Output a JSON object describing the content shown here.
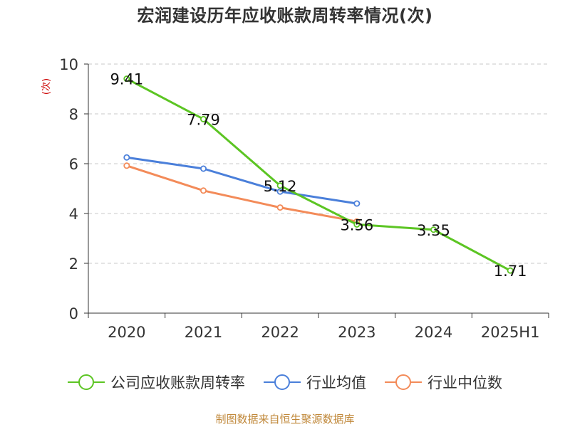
{
  "title": "宏润建设历年应收账款周转率情况(次)",
  "source": "制图数据来自恒生聚源数据库",
  "chart_data": {
    "type": "line",
    "title": "宏润建设历年应收账款周转率情况(次)",
    "ylabel": "(次)",
    "categories": [
      "2020",
      "2021",
      "2022",
      "2023",
      "2024",
      "2025H1"
    ],
    "y_ticks": [
      "0",
      "2",
      "4",
      "6",
      "8",
      "10"
    ],
    "ylim": [
      0,
      10
    ],
    "grid": "horizontal dashed",
    "legend_position": "bottom",
    "series": [
      {
        "name": "公司应收账款周转率",
        "color": "#5cc523",
        "values": [
          9.41,
          7.79,
          5.12,
          3.56,
          3.35,
          1.71
        ],
        "labels": [
          "9.41",
          "7.79",
          "5.12",
          "3.56",
          "3.35",
          "1.71"
        ]
      },
      {
        "name": "行业均值",
        "color": "#4a7fda",
        "values": [
          6.25,
          5.8,
          4.88,
          4.4,
          null,
          null
        ]
      },
      {
        "name": "行业中位数",
        "color": "#f38b59",
        "values": [
          5.92,
          4.92,
          4.24,
          3.68,
          null,
          null
        ]
      }
    ]
  }
}
